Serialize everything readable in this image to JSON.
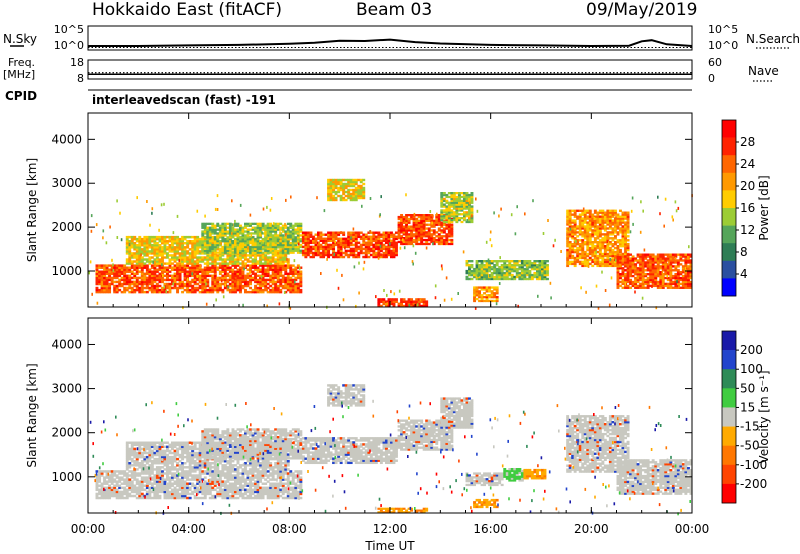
{
  "header": {
    "station": "Hokkaido East (fitACF)",
    "beam": "Beam 03",
    "date": "09/May/2019"
  },
  "side_labels": {
    "nsky": "N.Sky",
    "nsearch": "N.Search",
    "freq_line1": "Freq.",
    "freq_line2": "[MHz]",
    "cpid": "CPID",
    "nave": "Nave",
    "scan_label": "interleavedscan (fast) -191"
  },
  "colors": {
    "power": [
      "#0000ff",
      "#2a4fa0",
      "#2e7d55",
      "#55a55a",
      "#9ccc35",
      "#ffcc00",
      "#ff9900",
      "#ff6600",
      "#ff2200",
      "#ff0000"
    ],
    "velocity": [
      "#1a1aa8",
      "#2244cc",
      "#2e8b57",
      "#40cc40",
      "#c8c8c0",
      "#ffaa00",
      "#ff7700",
      "#ff4400",
      "#ff0000"
    ],
    "ground_scatter": "#c8c8c0"
  },
  "chart_data": [
    {
      "type": "line",
      "name": "noise",
      "y_ticks_left": [
        "10^5",
        "10^0"
      ],
      "y_ticks_right": [
        "10^5",
        "10^0"
      ],
      "series": [
        {
          "name": "N.Sky",
          "x_hours": [
            0,
            2,
            4,
            6,
            8,
            9,
            10,
            11,
            12,
            13,
            14,
            16,
            18,
            20,
            21.5,
            22,
            22.4,
            23,
            24
          ],
          "values": [
            1,
            1,
            1.5,
            2,
            4,
            8,
            30,
            25,
            60,
            12,
            5,
            2,
            1.5,
            1,
            1.2,
            20,
            40,
            3,
            1
          ]
        },
        {
          "name": "N.Search",
          "x_hours": [
            0,
            24
          ],
          "values": [
            1,
            1
          ]
        }
      ]
    },
    {
      "type": "line",
      "name": "frequency-nave",
      "freq_ticks_mhz": [
        18,
        8
      ],
      "nave_ticks": [
        60,
        0
      ],
      "freq_mhz": 10.5,
      "nave": 20
    },
    {
      "type": "heatmap",
      "name": "power",
      "xlabel": "",
      "ylabel": "Slant Range [km]",
      "x_tick_labels": [
        "00:00",
        "04:00",
        "08:00",
        "12:00",
        "16:00",
        "20:00",
        "00:00"
      ],
      "x_ticks_hours": [
        0,
        4,
        8,
        12,
        16,
        20,
        24
      ],
      "y_ticks_km": [
        1000,
        2000,
        3000,
        4000
      ],
      "ylim_km": [
        180,
        4600
      ],
      "xlim_hours": [
        0,
        24
      ],
      "colorbar": {
        "label": "Power [dB]",
        "ticks": [
          4,
          8,
          12,
          16,
          20,
          24,
          28
        ],
        "range": [
          0,
          32
        ]
      },
      "regions": [
        {
          "t0": 0.3,
          "t1": 8.5,
          "r0": 500,
          "r1": 1150,
          "level": 26
        },
        {
          "t0": 1.5,
          "t1": 8.0,
          "r0": 1150,
          "r1": 1800,
          "level": 18
        },
        {
          "t0": 4.5,
          "t1": 8.5,
          "r0": 1400,
          "r1": 2100,
          "level": 14
        },
        {
          "t0": 8.5,
          "t1": 12.3,
          "r0": 1300,
          "r1": 1900,
          "level": 27
        },
        {
          "t0": 9.5,
          "t1": 11.0,
          "r0": 2600,
          "r1": 3100,
          "level": 18
        },
        {
          "t0": 12.3,
          "t1": 14.5,
          "r0": 1600,
          "r1": 2300,
          "level": 27
        },
        {
          "t0": 14.0,
          "t1": 15.3,
          "r0": 2100,
          "r1": 2800,
          "level": 15
        },
        {
          "t0": 15.0,
          "t1": 18.3,
          "r0": 800,
          "r1": 1250,
          "level": 13
        },
        {
          "t0": 15.3,
          "t1": 16.3,
          "r0": 300,
          "r1": 650,
          "level": 22
        },
        {
          "t0": 11.5,
          "t1": 13.5,
          "r0": 180,
          "r1": 380,
          "level": 28
        },
        {
          "t0": 19.0,
          "t1": 21.5,
          "r0": 1100,
          "r1": 2400,
          "level": 22
        },
        {
          "t0": 21.0,
          "t1": 24.0,
          "r0": 600,
          "r1": 1400,
          "level": 26
        }
      ]
    },
    {
      "type": "heatmap",
      "name": "velocity",
      "xlabel": "Time UT",
      "ylabel": "Slant Range [km]",
      "x_tick_labels": [
        "00:00",
        "04:00",
        "08:00",
        "12:00",
        "16:00",
        "20:00",
        "00:00"
      ],
      "x_ticks_hours": [
        0,
        4,
        8,
        12,
        16,
        20,
        24
      ],
      "y_ticks_km": [
        1000,
        2000,
        3000,
        4000
      ],
      "ylim_km": [
        180,
        4600
      ],
      "xlim_hours": [
        0,
        24
      ],
      "colorbar": {
        "label": "Velocity [m s⁻¹]",
        "ticks": [
          200,
          100,
          50,
          15,
          -15,
          -50,
          -100,
          -200
        ]
      },
      "regions": [
        {
          "t0": 0.3,
          "t1": 8.5,
          "r0": 500,
          "r1": 1150,
          "color": "ground"
        },
        {
          "t0": 1.5,
          "t1": 8.0,
          "r0": 1150,
          "r1": 1800,
          "color": "ground"
        },
        {
          "t0": 4.5,
          "t1": 8.5,
          "r0": 1400,
          "r1": 2100,
          "color": "ground"
        },
        {
          "t0": 8.5,
          "t1": 12.3,
          "r0": 1300,
          "r1": 1900,
          "color": "ground"
        },
        {
          "t0": 9.5,
          "t1": 11.0,
          "r0": 2600,
          "r1": 3100,
          "color": "ground"
        },
        {
          "t0": 12.3,
          "t1": 14.5,
          "r0": 1600,
          "r1": 2300,
          "color": "ground"
        },
        {
          "t0": 14.0,
          "t1": 15.3,
          "r0": 2100,
          "r1": 2800,
          "color": "ground"
        },
        {
          "t0": 15.0,
          "t1": 16.5,
          "r0": 800,
          "r1": 1100,
          "color": "ground"
        },
        {
          "t0": 16.5,
          "t1": 17.3,
          "r0": 900,
          "r1": 1200,
          "color": "green"
        },
        {
          "t0": 17.3,
          "t1": 18.2,
          "r0": 950,
          "r1": 1180,
          "color": "orange"
        },
        {
          "t0": 15.3,
          "t1": 16.3,
          "r0": 300,
          "r1": 500,
          "color": "orange"
        },
        {
          "t0": 11.5,
          "t1": 13.5,
          "r0": 180,
          "r1": 300,
          "color": "orange"
        },
        {
          "t0": 19.0,
          "t1": 21.5,
          "r0": 1100,
          "r1": 2400,
          "color": "ground"
        },
        {
          "t0": 21.0,
          "t1": 24.0,
          "r0": 600,
          "r1": 1400,
          "color": "ground"
        }
      ]
    }
  ]
}
